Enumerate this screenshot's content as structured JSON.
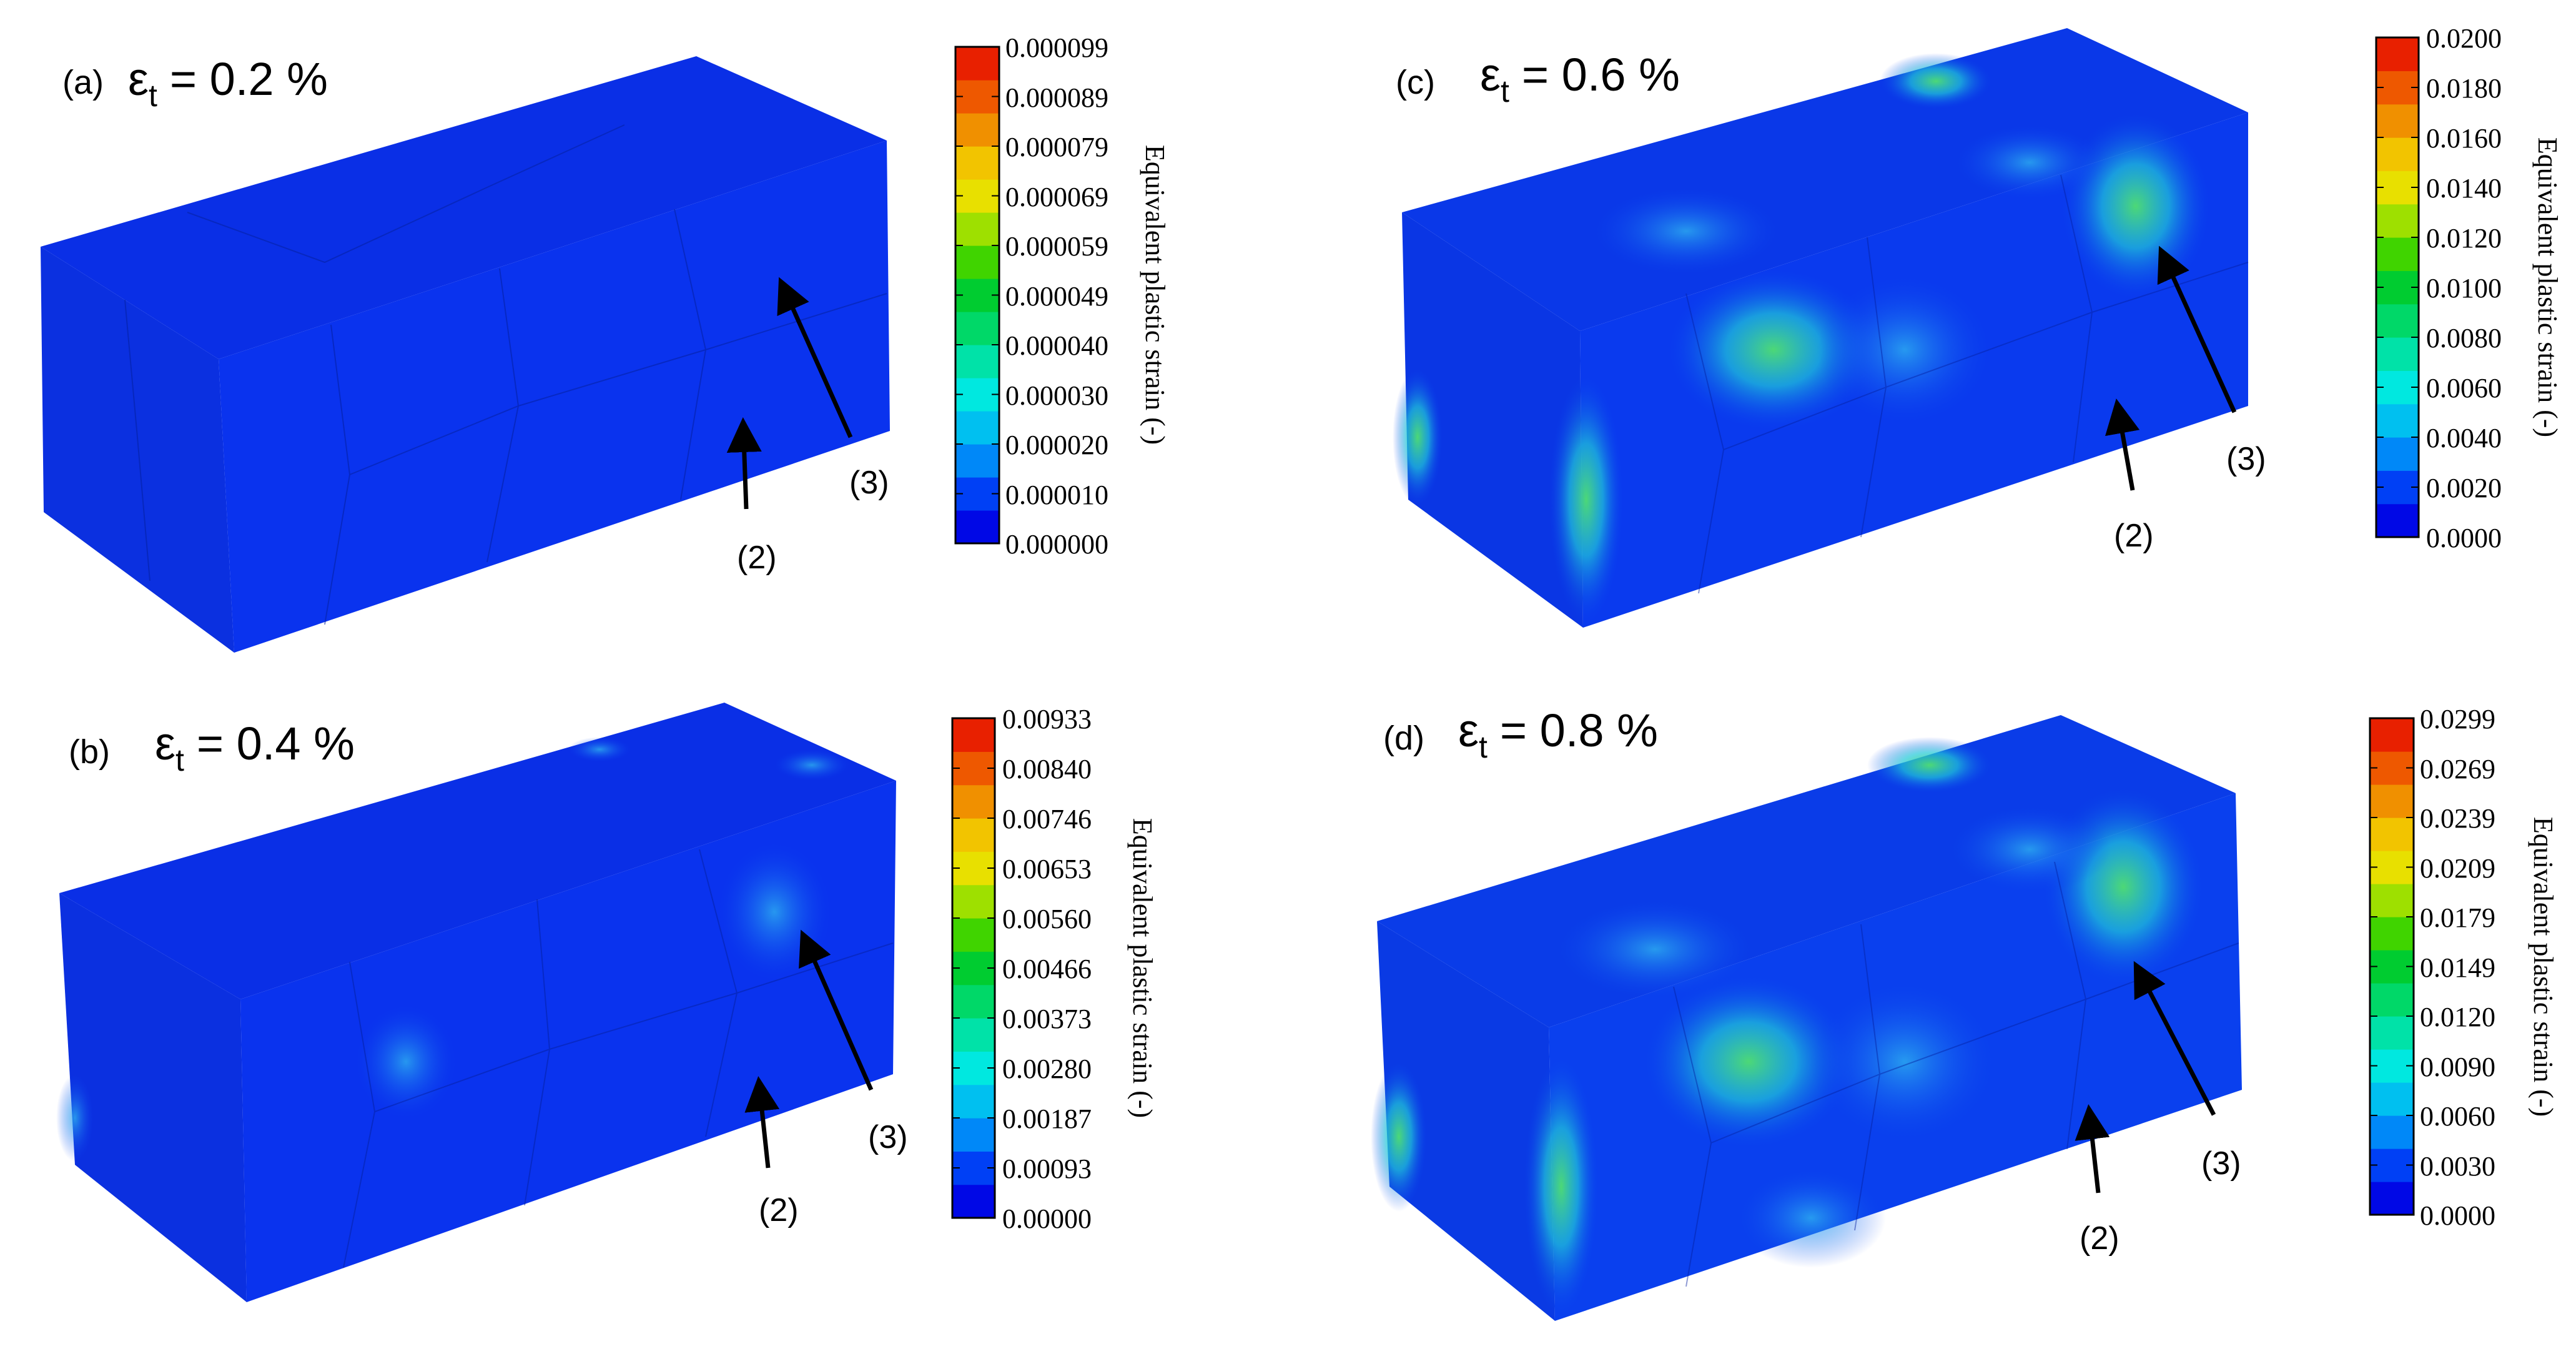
{
  "colorbar_colors": [
    "#0008e6",
    "#0040f5",
    "#0088f8",
    "#00c0f0",
    "#00e8e0",
    "#00e2a8",
    "#00d868",
    "#00cc30",
    "#40d400",
    "#9ee000",
    "#e8e000",
    "#f2c400",
    "#f09000",
    "#ee5800",
    "#e82000"
  ],
  "panels": [
    {
      "id": "a",
      "panel_label": "(a)",
      "strain_prefix": "ε",
      "strain_sub": "t",
      "strain_value": "= 0.2 %",
      "arrow_labels": [
        "(2)",
        "(3)"
      ],
      "colorbar_title": "Equivalent plastic strain (-)",
      "colorbar_ticks": [
        "0.000099",
        "0.000089",
        "0.000079",
        "0.000069",
        "0.000059",
        "0.000049",
        "0.000040",
        "0.000030",
        "0.000020",
        "0.000010",
        "0.000000"
      ],
      "fill_level": 0
    },
    {
      "id": "b",
      "panel_label": "(b)",
      "strain_prefix": "ε",
      "strain_sub": "t",
      "strain_value": "= 0.4 %",
      "arrow_labels": [
        "(2)",
        "(3)"
      ],
      "colorbar_title": "Equivalent plastic strain (-)",
      "colorbar_ticks": [
        "0.00933",
        "0.00840",
        "0.00746",
        "0.00653",
        "0.00560",
        "0.00466",
        "0.00373",
        "0.00280",
        "0.00187",
        "0.00093",
        "0.00000"
      ],
      "fill_level": 1
    },
    {
      "id": "c",
      "panel_label": "(c)",
      "strain_prefix": "ε",
      "strain_sub": "t",
      "strain_value": "= 0.6 %",
      "arrow_labels": [
        "(2)",
        "(3)"
      ],
      "colorbar_title": "Equivalent plastic strain (-)",
      "colorbar_ticks": [
        "0.0200",
        "0.0180",
        "0.0160",
        "0.0140",
        "0.0120",
        "0.0100",
        "0.0080",
        "0.0060",
        "0.0040",
        "0.0020",
        "0.0000"
      ],
      "fill_level": 2
    },
    {
      "id": "d",
      "panel_label": "(d)",
      "strain_prefix": "ε",
      "strain_sub": "t",
      "strain_value": "= 0.8 %",
      "arrow_labels": [
        "(2)",
        "(3)"
      ],
      "colorbar_title": "Equivalent plastic strain (-)",
      "colorbar_ticks": [
        "0.0299",
        "0.0269",
        "0.0239",
        "0.0209",
        "0.0179",
        "0.0149",
        "0.0120",
        "0.0090",
        "0.0060",
        "0.0030",
        "0.0000"
      ],
      "fill_level": 3
    }
  ]
}
